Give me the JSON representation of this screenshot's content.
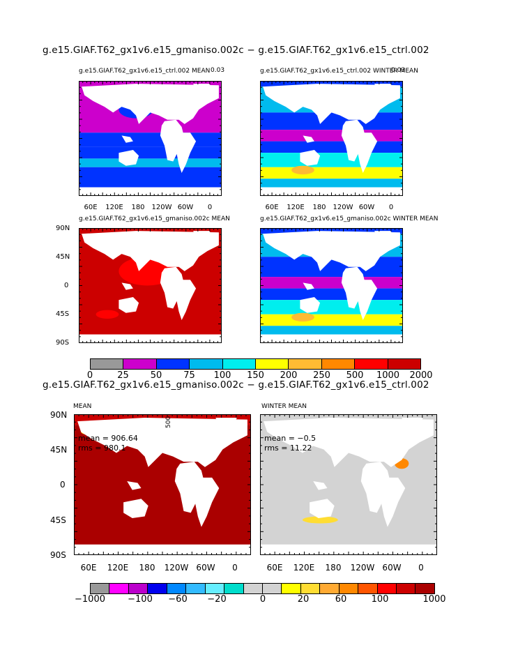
{
  "top_title": "g.e15.GIAF.T62_gx1v6.e15_gmaniso.002c  −  g.e15.GIAF.T62_gx1v6.e15_ctrl.002",
  "bottom_title": "g.e15.GIAF.T62_gx1v6.e15_gmaniso.002c  −  g.e15.GIAF.T62_gx1v6.e15_ctrl.002",
  "panels": {
    "ctrl_mean": {
      "title": "g.e15.GIAF.T62_gx1v6.e15_ctrl.002 MEAN",
      "overlay": "0.03"
    },
    "ctrl_winter": {
      "title": "g.e15.GIAF.T62_gx1v6.e15_ctrl.002 WINTER MEAN",
      "overlay": "0.03"
    },
    "gm_mean": {
      "title": "g.e15.GIAF.T62_gx1v6.e15_gmaniso.002c MEAN"
    },
    "gm_winter": {
      "title": "g.e15.GIAF.T62_gx1v6.e15_gmaniso.002c WINTER MEAN"
    },
    "diff_mean": {
      "title": "MEAN",
      "mean_text": "mean = 906.64",
      "rms_text": "rms = 980.1",
      "overlay": "500"
    },
    "diff_winter": {
      "title": "WINTER MEAN",
      "mean_text": "mean = −0.5",
      "rms_text": "rms = 11.22"
    }
  },
  "axes": {
    "lon_labels": [
      "60E",
      "120E",
      "180",
      "120W",
      "60W",
      "0"
    ],
    "lat_labels": [
      "90N",
      "45N",
      "0",
      "45S",
      "90S"
    ]
  },
  "colorbar_top": {
    "colors": [
      "#999999",
      "#cc00cc",
      "#0033ff",
      "#00bbee",
      "#00eeee",
      "#ffff00",
      "#ffbb33",
      "#ff8800",
      "#ff0000",
      "#cc0000"
    ],
    "labels": [
      "0",
      "25",
      "50",
      "75",
      "100",
      "150",
      "200",
      "250",
      "500",
      "1000",
      "2000"
    ]
  },
  "colorbar_bottom": {
    "colors": [
      "#999999",
      "#ff00ff",
      "#bb00cc",
      "#0000ee",
      "#0088ff",
      "#33bbff",
      "#66eeff",
      "#00ddcc",
      "#d3d3d3",
      "#d3d3d3",
      "#ffff00",
      "#ffdd33",
      "#ffaa33",
      "#ff8800",
      "#ff5500",
      "#ff0000",
      "#cc0000",
      "#aa0000"
    ],
    "labels": [
      "−1000",
      "−100",
      "−60",
      "−20",
      "0",
      "20",
      "60",
      "100",
      "1000"
    ]
  }
}
